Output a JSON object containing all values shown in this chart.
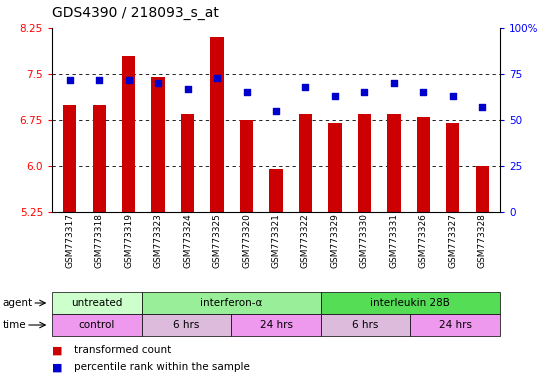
{
  "title": "GDS4390 / 218093_s_at",
  "samples": [
    "GSM773317",
    "GSM773318",
    "GSM773319",
    "GSM773323",
    "GSM773324",
    "GSM773325",
    "GSM773320",
    "GSM773321",
    "GSM773322",
    "GSM773329",
    "GSM773330",
    "GSM773331",
    "GSM773326",
    "GSM773327",
    "GSM773328"
  ],
  "transformed_count": [
    7.0,
    7.0,
    7.8,
    7.45,
    6.85,
    8.1,
    6.75,
    5.95,
    6.85,
    6.7,
    6.85,
    6.85,
    6.8,
    6.7,
    6.0
  ],
  "percentile_rank": [
    72,
    72,
    72,
    70,
    67,
    73,
    65,
    55,
    68,
    63,
    65,
    70,
    65,
    63,
    57
  ],
  "ylim_left": [
    5.25,
    8.25
  ],
  "ylim_right": [
    0,
    100
  ],
  "yticks_left": [
    5.25,
    6.0,
    6.75,
    7.5,
    8.25
  ],
  "yticks_right": [
    0,
    25,
    50,
    75,
    100
  ],
  "bar_color": "#cc0000",
  "dot_color": "#0000cc",
  "plot_bg_color": "#ffffff",
  "agent_groups": [
    {
      "label": "untreated",
      "start": 0,
      "end": 3,
      "color": "#ccffcc"
    },
    {
      "label": "interferon-α",
      "start": 3,
      "end": 9,
      "color": "#99ee99"
    },
    {
      "label": "interleukin 28B",
      "start": 9,
      "end": 15,
      "color": "#55dd55"
    }
  ],
  "time_groups": [
    {
      "label": "control",
      "start": 0,
      "end": 3,
      "color": "#ee99ee"
    },
    {
      "label": "6 hrs",
      "start": 3,
      "end": 6,
      "color": "#ddbbdd"
    },
    {
      "label": "24 hrs",
      "start": 6,
      "end": 9,
      "color": "#ee99ee"
    },
    {
      "label": "6 hrs",
      "start": 9,
      "end": 12,
      "color": "#ddbbdd"
    },
    {
      "label": "24 hrs",
      "start": 12,
      "end": 15,
      "color": "#ee99ee"
    }
  ],
  "legend_bar_label": "transformed count",
  "legend_dot_label": "percentile rank within the sample"
}
